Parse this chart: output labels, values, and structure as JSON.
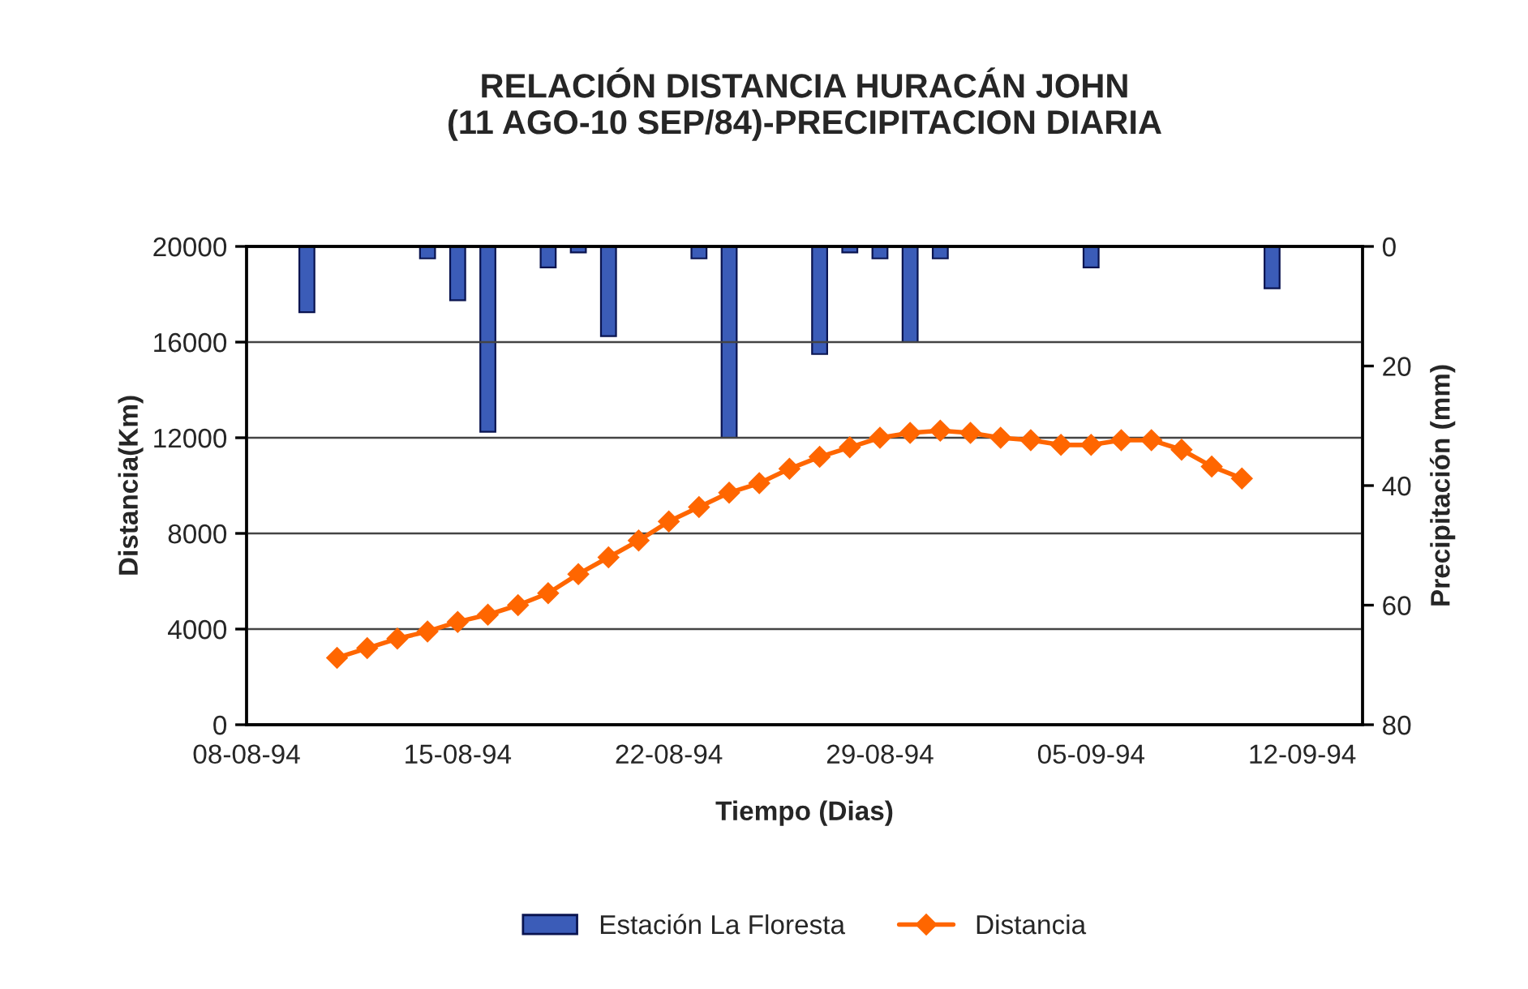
{
  "chart_data": {
    "type": "line",
    "title": "RELACIÓN DISTANCIA HURACÁN JOHN\n(11 AGO-10 SEP/84)-PRECIPITACION DIARIA",
    "xlabel": "Tiempo (Dias)",
    "ylabel": "Distancia(Km)",
    "y2label": "Precipitación (mm)",
    "series": [
      {
        "name": "Estación La Floresta",
        "type": "bar",
        "axis": "y2",
        "color": "#3b5cb8",
        "x": [
          "1994-08-10",
          "1994-08-14",
          "1994-08-15",
          "1994-08-16",
          "1994-08-18",
          "1994-08-19",
          "1994-08-20",
          "1994-08-23",
          "1994-08-24",
          "1994-08-27",
          "1994-08-28",
          "1994-08-29",
          "1994-08-30",
          "1994-08-31",
          "1994-09-05",
          "1994-09-11"
        ],
        "values": [
          11,
          2,
          9,
          31,
          3.5,
          1,
          15,
          2,
          32,
          18,
          1,
          2,
          16,
          2,
          3.5,
          7
        ]
      },
      {
        "name": "Distancia",
        "color": "#ff6600",
        "marker": "diamond",
        "x": [
          "1994-08-11",
          "1994-08-12",
          "1994-08-13",
          "1994-08-14",
          "1994-08-15",
          "1994-08-16",
          "1994-08-17",
          "1994-08-18",
          "1994-08-19",
          "1994-08-20",
          "1994-08-21",
          "1994-08-22",
          "1994-08-23",
          "1994-08-24",
          "1994-08-25",
          "1994-08-26",
          "1994-08-27",
          "1994-08-28",
          "1994-08-29",
          "1994-08-30",
          "1994-08-31",
          "1994-09-01",
          "1994-09-02",
          "1994-09-03",
          "1994-09-04",
          "1994-09-05",
          "1994-09-06",
          "1994-09-07",
          "1994-09-08",
          "1994-09-09",
          "1994-09-10"
        ],
        "values": [
          2800,
          3200,
          3600,
          3900,
          4300,
          4600,
          5000,
          5500,
          6300,
          7000,
          7700,
          8500,
          9100,
          9700,
          10100,
          10700,
          11200,
          11600,
          12000,
          12200,
          12300,
          12200,
          12000,
          11900,
          11700,
          11700,
          11900,
          11900,
          11500,
          10800,
          10300
        ]
      }
    ],
    "xlim": [
      "1994-08-08",
      "1994-09-14"
    ],
    "xticks": [
      {
        "value": "1994-08-08",
        "label": "08-08-94"
      },
      {
        "value": "1994-08-15",
        "label": "15-08-94"
      },
      {
        "value": "1994-08-22",
        "label": "22-08-94"
      },
      {
        "value": "1994-08-29",
        "label": "29-08-94"
      },
      {
        "value": "1994-09-05",
        "label": "05-09-94"
      },
      {
        "value": "1994-09-12",
        "label": "12-09-94"
      }
    ],
    "ylim": [
      0,
      20000
    ],
    "yticks": [
      0,
      4000,
      8000,
      12000,
      16000,
      20000
    ],
    "y2lim": [
      80,
      0
    ],
    "y2ticks": [
      0,
      20,
      40,
      60,
      80
    ],
    "grid": "y",
    "legend": "bottom"
  }
}
